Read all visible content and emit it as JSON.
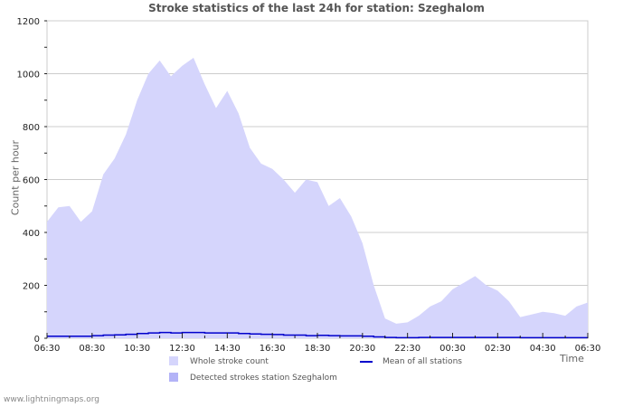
{
  "title": "Stroke statistics of the last 24h for station: Szeghalom",
  "footer": "www.lightningmaps.org",
  "colors": {
    "whole_fill": "#d5d5fc",
    "detected_fill": "#b3b3f7",
    "mean_line": "#0000cc",
    "grid": "#cccccc",
    "axis_text": "#222222"
  },
  "legend": {
    "whole": "Whole stroke count",
    "detected": "Detected strokes station Szeghalom",
    "mean": "Mean of all stations"
  },
  "chart_data": {
    "type": "area",
    "title": "Stroke statistics of the last 24h for station: Szeghalom",
    "xlabel": "Time",
    "ylabel": "Count per hour",
    "ylim": [
      0,
      1200
    ],
    "yticks": [
      0,
      200,
      400,
      600,
      800,
      1000,
      1200
    ],
    "xtick_labels": [
      "06:30",
      "08:30",
      "10:30",
      "12:30",
      "14:30",
      "16:30",
      "18:30",
      "20:30",
      "22:30",
      "00:30",
      "02:30",
      "04:30",
      "06:30"
    ],
    "grid": true,
    "legend_position": "bottom",
    "x": [
      "06:30",
      "07:00",
      "07:30",
      "08:00",
      "08:30",
      "09:00",
      "09:30",
      "10:00",
      "10:30",
      "11:00",
      "11:30",
      "12:00",
      "12:30",
      "13:00",
      "13:30",
      "14:00",
      "14:30",
      "15:00",
      "15:30",
      "16:00",
      "16:30",
      "17:00",
      "17:30",
      "18:00",
      "18:30",
      "19:00",
      "19:30",
      "20:00",
      "20:30",
      "21:00",
      "21:30",
      "22:00",
      "22:30",
      "23:00",
      "23:30",
      "00:00",
      "00:30",
      "01:00",
      "01:30",
      "02:00",
      "02:30",
      "03:00",
      "03:30",
      "04:00",
      "04:30",
      "05:00",
      "05:30",
      "06:00",
      "06:30"
    ],
    "series": [
      {
        "name": "Whole stroke count",
        "type": "area",
        "values": [
          440,
          495,
          500,
          440,
          480,
          620,
          680,
          770,
          900,
          1000,
          1050,
          990,
          1030,
          1060,
          960,
          870,
          935,
          850,
          720,
          660,
          640,
          600,
          550,
          600,
          590,
          500,
          530,
          460,
          360,
          200,
          75,
          55,
          60,
          85,
          120,
          140,
          185,
          210,
          235,
          200,
          180,
          140,
          80,
          90,
          100,
          95,
          85,
          120,
          135
        ]
      },
      {
        "name": "Detected strokes station Szeghalom",
        "type": "area",
        "values": [
          0,
          0,
          0,
          0,
          0,
          0,
          0,
          0,
          0,
          0,
          0,
          0,
          0,
          0,
          0,
          0,
          0,
          0,
          0,
          0,
          0,
          0,
          0,
          0,
          0,
          0,
          0,
          0,
          0,
          0,
          0,
          0,
          0,
          0,
          0,
          0,
          0,
          0,
          0,
          0,
          0,
          0,
          0,
          0,
          0,
          0,
          0,
          0,
          0
        ]
      },
      {
        "name": "Mean of all stations",
        "type": "line",
        "values": [
          8,
          8,
          8,
          8,
          10,
          12,
          13,
          15,
          18,
          20,
          22,
          20,
          22,
          22,
          20,
          20,
          20,
          18,
          16,
          15,
          14,
          12,
          12,
          10,
          11,
          10,
          9,
          9,
          8,
          5,
          3,
          2,
          2,
          3,
          3,
          3,
          3,
          3,
          3,
          3,
          3,
          3,
          2,
          2,
          2,
          2,
          2,
          2,
          2
        ]
      }
    ]
  }
}
